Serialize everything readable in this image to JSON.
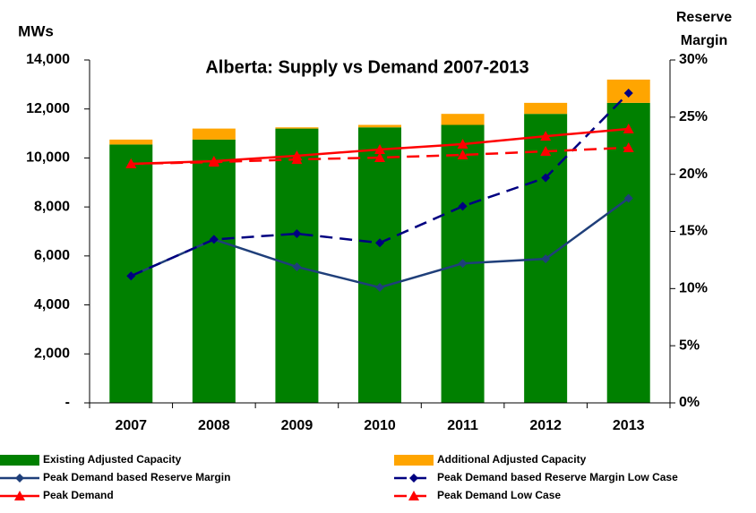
{
  "chart_data": {
    "type": "bar",
    "title": "Alberta: Supply vs Demand 2007-2013",
    "y_label": "MWs",
    "y2_label": [
      "Reserve",
      "Margin"
    ],
    "categories": [
      "2007",
      "2008",
      "2009",
      "2010",
      "2011",
      "2012",
      "2013"
    ],
    "stacked": true,
    "ylim": [
      0,
      14000
    ],
    "yticks": [
      {
        "value": 0,
        "label": "-"
      },
      {
        "value": 2000,
        "label": "2,000"
      },
      {
        "value": 4000,
        "label": "4,000"
      },
      {
        "value": 6000,
        "label": "6,000"
      },
      {
        "value": 8000,
        "label": "8,000"
      },
      {
        "value": 10000,
        "label": "10,000"
      },
      {
        "value": 12000,
        "label": "12,000"
      },
      {
        "value": 14000,
        "label": "14,000"
      }
    ],
    "y2lim": [
      0,
      30
    ],
    "y2ticks": [
      {
        "value": 0,
        "label": "0%"
      },
      {
        "value": 5,
        "label": "5%"
      },
      {
        "value": 10,
        "label": "10%"
      },
      {
        "value": 15,
        "label": "15%"
      },
      {
        "value": 20,
        "label": "20%"
      },
      {
        "value": 25,
        "label": "25%"
      },
      {
        "value": 30,
        "label": "30%"
      }
    ],
    "grid": false,
    "series": [
      {
        "name": "Existing Adjusted Capacity",
        "type": "bar",
        "color": "#008000",
        "values": [
          10550,
          10750,
          11200,
          11250,
          11350,
          11800,
          12250
        ]
      },
      {
        "name": "Additional Adjusted Capacity",
        "type": "bar",
        "color": "#ffa500",
        "values": [
          200,
          450,
          50,
          100,
          450,
          450,
          950
        ]
      },
      {
        "name": "Peak Demand based Reserve Margin",
        "type": "line",
        "axis": "y2",
        "color": "#1f3f7a",
        "marker": "diamond",
        "dashed": false,
        "values": [
          11.1,
          14.3,
          11.9,
          10.1,
          12.2,
          12.6,
          17.9
        ]
      },
      {
        "name": "Peak Demand based Reserve Margin Low Case",
        "type": "line",
        "axis": "y2",
        "color": "#000080",
        "marker": "diamond",
        "dashed": true,
        "values": [
          11.1,
          14.3,
          14.8,
          14.0,
          17.2,
          19.7,
          27.1
        ]
      },
      {
        "name": "Peak Demand",
        "type": "line",
        "color": "#ff0000",
        "marker": "triangle",
        "dashed": false,
        "values": [
          9760,
          9870,
          10090,
          10345,
          10565,
          10890,
          11185
        ]
      },
      {
        "name": "Peak Demand Low Case",
        "type": "line",
        "color": "#ff0000",
        "marker": "triangle",
        "dashed": true,
        "values": [
          9760,
          9830,
          9940,
          10015,
          10125,
          10270,
          10420
        ]
      }
    ]
  }
}
